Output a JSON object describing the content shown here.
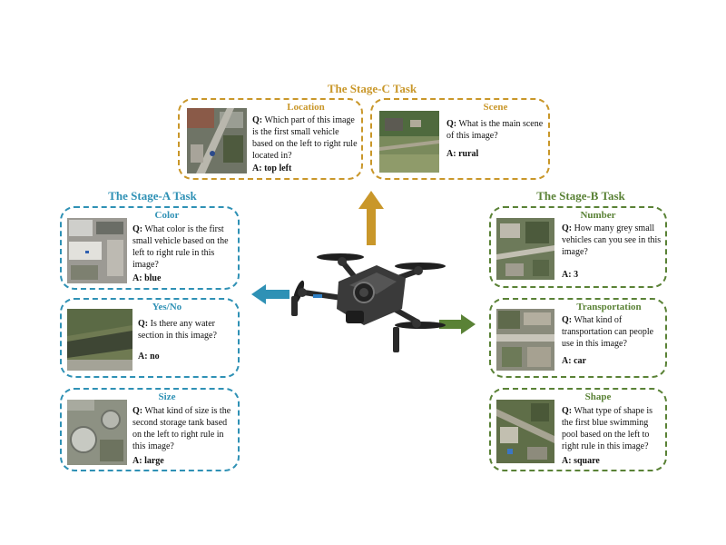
{
  "colors": {
    "stage_a": "#2f91b5",
    "stage_b": "#5a8236",
    "stage_c": "#c9972a"
  },
  "stage_c": {
    "title": "The Stage-C Task",
    "cards": [
      {
        "category": "Location",
        "q_label": "Q:",
        "question": "Which part of this image is the first small vehicle based on the left to right rule located in?",
        "a_label": "A:",
        "answer": "top left"
      },
      {
        "category": "Scene",
        "q_label": "Q:",
        "question": "What is the main scene of this image?",
        "a_label": "A:",
        "answer": "rural"
      }
    ]
  },
  "stage_a": {
    "title": "The Stage-A Task",
    "cards": [
      {
        "category": "Color",
        "q_label": "Q:",
        "question": "What color is the first small vehicle based on the left to right rule in this image?",
        "a_label": "A:",
        "answer": "blue"
      },
      {
        "category": "Yes/No",
        "q_label": "Q:",
        "question": "Is there any water section in this image?",
        "a_label": "A:",
        "answer": "no"
      },
      {
        "category": "Size",
        "q_label": "Q:",
        "question": "What kind of size is the second storage tank based on the left to right rule in this image?",
        "a_label": "A:",
        "answer": "large"
      }
    ]
  },
  "stage_b": {
    "title": "The Stage-B Task",
    "cards": [
      {
        "category": "Number",
        "q_label": "Q:",
        "question": "How many grey small vehicles can you see in this image?",
        "a_label": "A:",
        "answer": "3"
      },
      {
        "category": "Transportation",
        "q_label": "Q:",
        "question": "What kind of transportation can people use in this image?",
        "a_label": "A:",
        "answer": "car"
      },
      {
        "category": "Shape",
        "q_label": "Q:",
        "question": "What type of shape is the first blue swimming pool based on the left to right rule in this image?",
        "a_label": "A:",
        "answer": "square"
      }
    ]
  },
  "icons": {
    "center": "drone-icon",
    "up": "arrow-up-icon",
    "left": "arrow-left-icon",
    "right": "arrow-right-icon",
    "thumbnails": "aerial-image-icon"
  }
}
